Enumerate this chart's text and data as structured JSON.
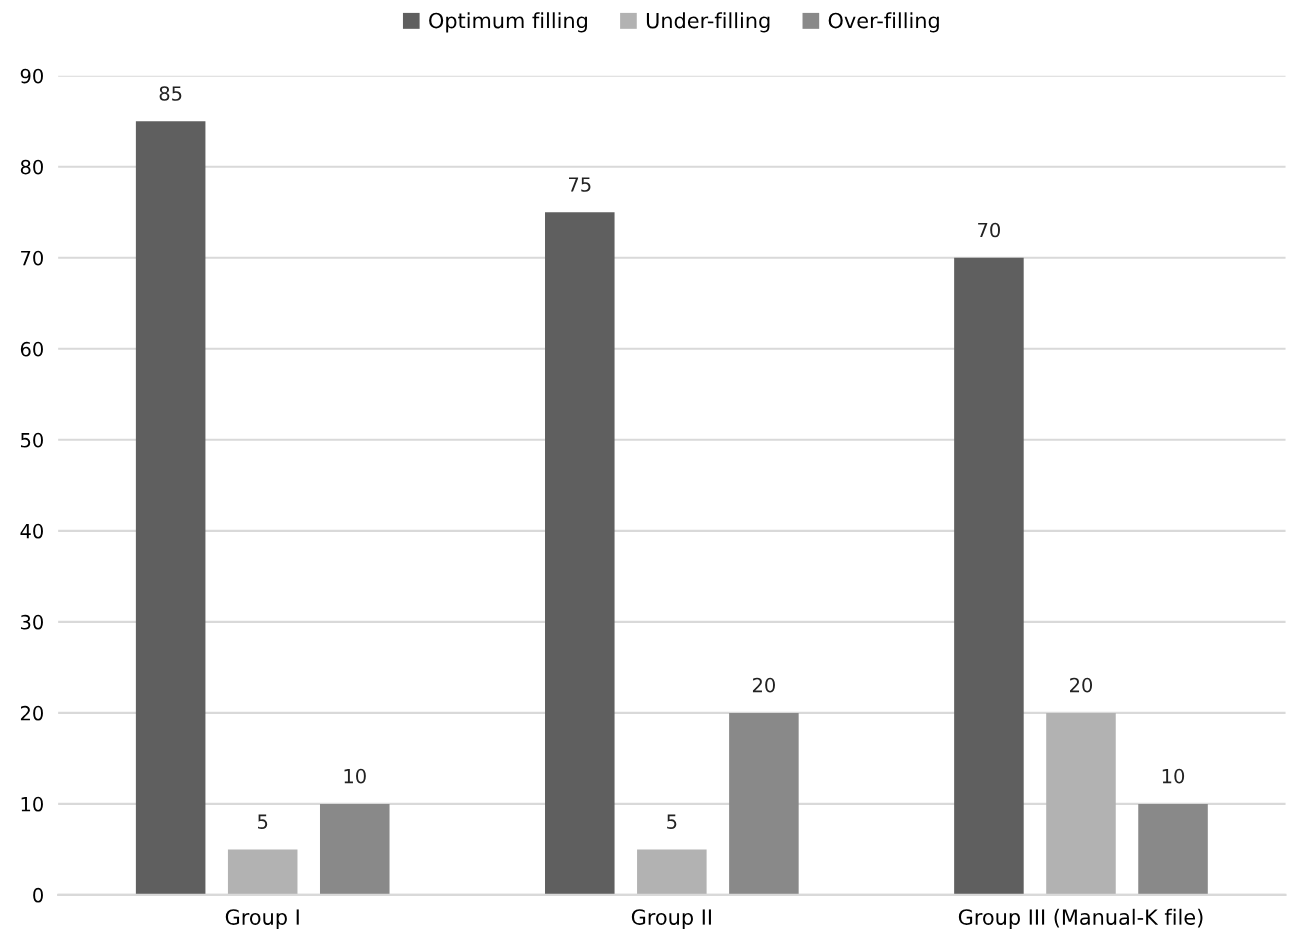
{
  "chart_data": {
    "type": "bar",
    "categories": [
      "Group I",
      "Group II",
      "Group III (Manual-K file)"
    ],
    "series": [
      {
        "name": "Optimum filling",
        "color": "#5f5f5f",
        "values": [
          85,
          75,
          70
        ]
      },
      {
        "name": "Under-filling",
        "color": "#b2b2b2",
        "values": [
          5,
          5,
          20
        ]
      },
      {
        "name": "Over-filling",
        "color": "#898989",
        "values": [
          10,
          20,
          10
        ]
      }
    ],
    "ylim": [
      0,
      90
    ],
    "yticks": [
      0,
      10,
      20,
      30,
      40,
      50,
      60,
      70,
      80,
      90
    ],
    "grid": "y",
    "legend": "top",
    "data_labels": true
  }
}
